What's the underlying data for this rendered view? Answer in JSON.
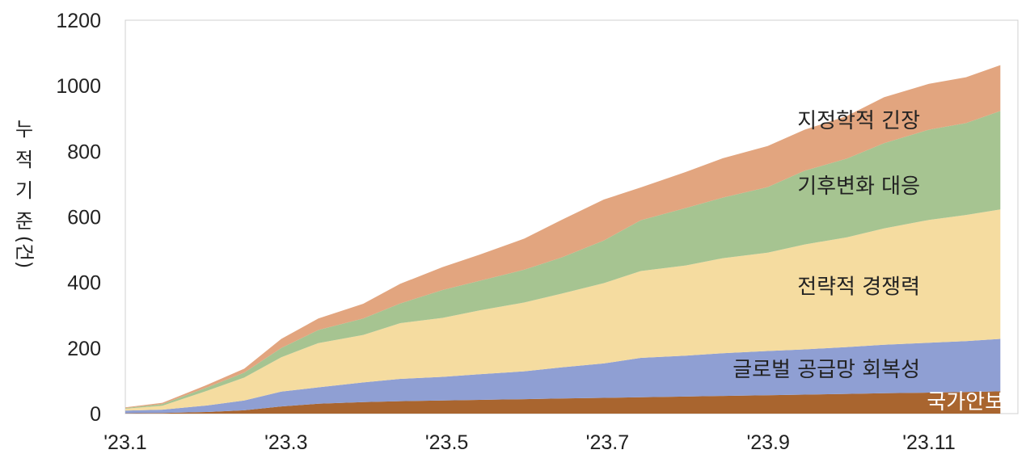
{
  "chart_data": {
    "type": "area",
    "stacked": true,
    "ylabel": "누적 기준 (건)",
    "ylim": [
      0,
      1200
    ],
    "yticks": [
      0,
      200,
      400,
      600,
      800,
      1000,
      1200
    ],
    "xticks": [
      "'23.1",
      "'23.3",
      "'23.5",
      "'23.7",
      "'23.9",
      "'23.11"
    ],
    "x": [
      "2023-01-01",
      "2023-01-15",
      "2023-02-01",
      "2023-02-15",
      "2023-03-01",
      "2023-03-15",
      "2023-04-01",
      "2023-04-15",
      "2023-05-01",
      "2023-05-15",
      "2023-06-01",
      "2023-06-15",
      "2023-07-01",
      "2023-07-15",
      "2023-08-01",
      "2023-08-15",
      "2023-09-01",
      "2023-09-15",
      "2023-10-01",
      "2023-10-15",
      "2023-11-01",
      "2023-11-15",
      "2023-11-28"
    ],
    "series": [
      {
        "name": "국가안보",
        "color": "#a9652f",
        "values": [
          1,
          2,
          5,
          10,
          22,
          30,
          35,
          38,
          40,
          42,
          44,
          46,
          48,
          50,
          52,
          54,
          56,
          58,
          60,
          62,
          64,
          66,
          68
        ]
      },
      {
        "name": "글로벌 공급망 회복성",
        "color": "#8f9fd3",
        "values": [
          8,
          10,
          20,
          30,
          45,
          50,
          60,
          68,
          72,
          78,
          85,
          95,
          105,
          120,
          125,
          130,
          135,
          138,
          143,
          148,
          152,
          155,
          160
        ]
      },
      {
        "name": "전략적 경쟁력",
        "color": "#f5dca0",
        "values": [
          6,
          12,
          45,
          70,
          105,
          135,
          145,
          170,
          180,
          195,
          210,
          225,
          245,
          265,
          275,
          290,
          300,
          320,
          335,
          355,
          375,
          385,
          395
        ]
      },
      {
        "name": "기후변화 대응",
        "color": "#a6c491",
        "values": [
          2,
          5,
          10,
          15,
          28,
          40,
          50,
          60,
          85,
          90,
          100,
          110,
          130,
          155,
          175,
          185,
          200,
          225,
          240,
          260,
          275,
          280,
          300
        ]
      },
      {
        "name": "지정학적 긴장",
        "color": "#e2a57f",
        "values": [
          2,
          4,
          8,
          12,
          28,
          35,
          45,
          60,
          70,
          80,
          95,
          115,
          125,
          100,
          110,
          120,
          125,
          125,
          130,
          140,
          140,
          140,
          140
        ]
      }
    ]
  }
}
